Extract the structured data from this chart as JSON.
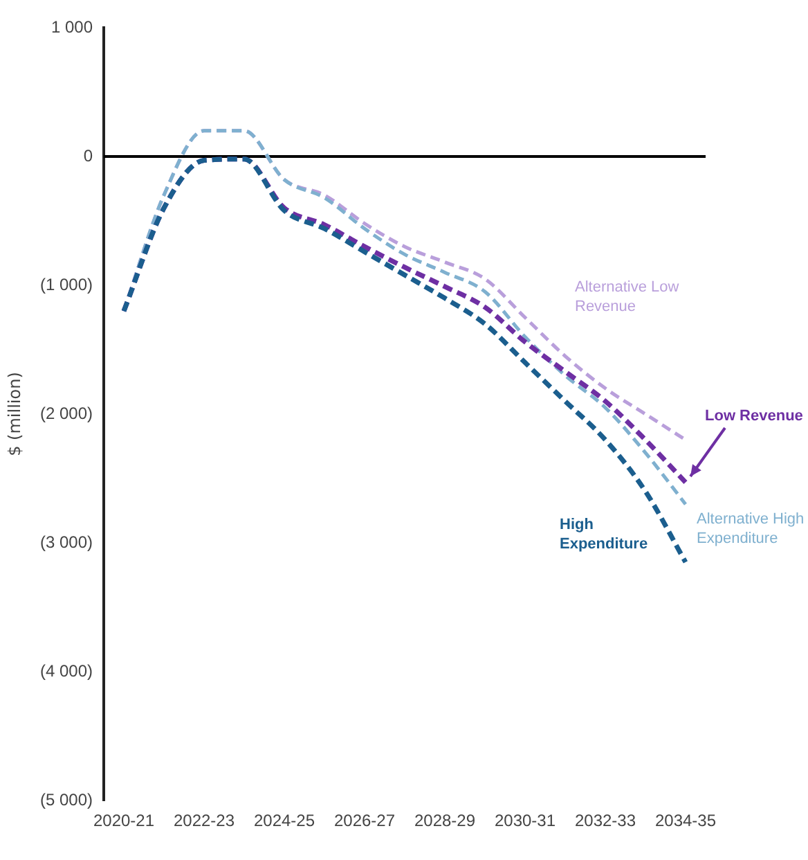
{
  "chart_data": {
    "type": "line",
    "ylabel": "$ (million)",
    "categories": [
      "2020-21",
      null,
      "2022-23",
      null,
      "2024-25",
      null,
      "2026-27",
      null,
      "2028-29",
      null,
      "2030-31",
      null,
      "2032-33",
      null,
      "2034-35"
    ],
    "series": [
      {
        "name": "Alternative Low Revenue",
        "color": "#b99fdb",
        "values": [
          -1200,
          -300,
          200,
          200,
          -180,
          -300,
          -520,
          -700,
          -820,
          -950,
          -1250,
          -1550,
          -1800,
          -2000,
          -2200
        ]
      },
      {
        "name": "Alternative High Expenditure",
        "color": "#7fb0cf",
        "values": [
          -1200,
          -300,
          200,
          200,
          -180,
          -320,
          -560,
          -760,
          -900,
          -1050,
          -1400,
          -1700,
          -1950,
          -2300,
          -2700
        ]
      },
      {
        "name": "Low Revenue",
        "color": "#6e2fa3",
        "values": [
          -1200,
          -400,
          -30,
          -20,
          -400,
          -530,
          -700,
          -860,
          -1010,
          -1170,
          -1440,
          -1670,
          -1900,
          -2200,
          -2530
        ]
      },
      {
        "name": "High Expenditure",
        "color": "#1b5e8e",
        "values": [
          -1200,
          -400,
          -30,
          -20,
          -420,
          -560,
          -740,
          -920,
          -1100,
          -1300,
          -1600,
          -1900,
          -2200,
          -2600,
          -3150
        ]
      }
    ],
    "ylim": [
      -5000,
      1000
    ],
    "yticks": [
      {
        "value": 1000,
        "label": "1 000"
      },
      0,
      {
        "value": -1000,
        "label": "(1 000)"
      },
      {
        "value": -2000,
        "label": "(2 000)"
      },
      {
        "value": -3000,
        "label": "(3 000)"
      },
      {
        "value": -4000,
        "label": "(4 000)"
      },
      {
        "value": -5000,
        "label": "(5 000)"
      }
    ],
    "ref_lines": [
      {
        "axis": "y",
        "value": 0,
        "color": "#000000"
      }
    ],
    "grid": false,
    "legend": false,
    "marker": "none",
    "line_style": "dashed"
  }
}
